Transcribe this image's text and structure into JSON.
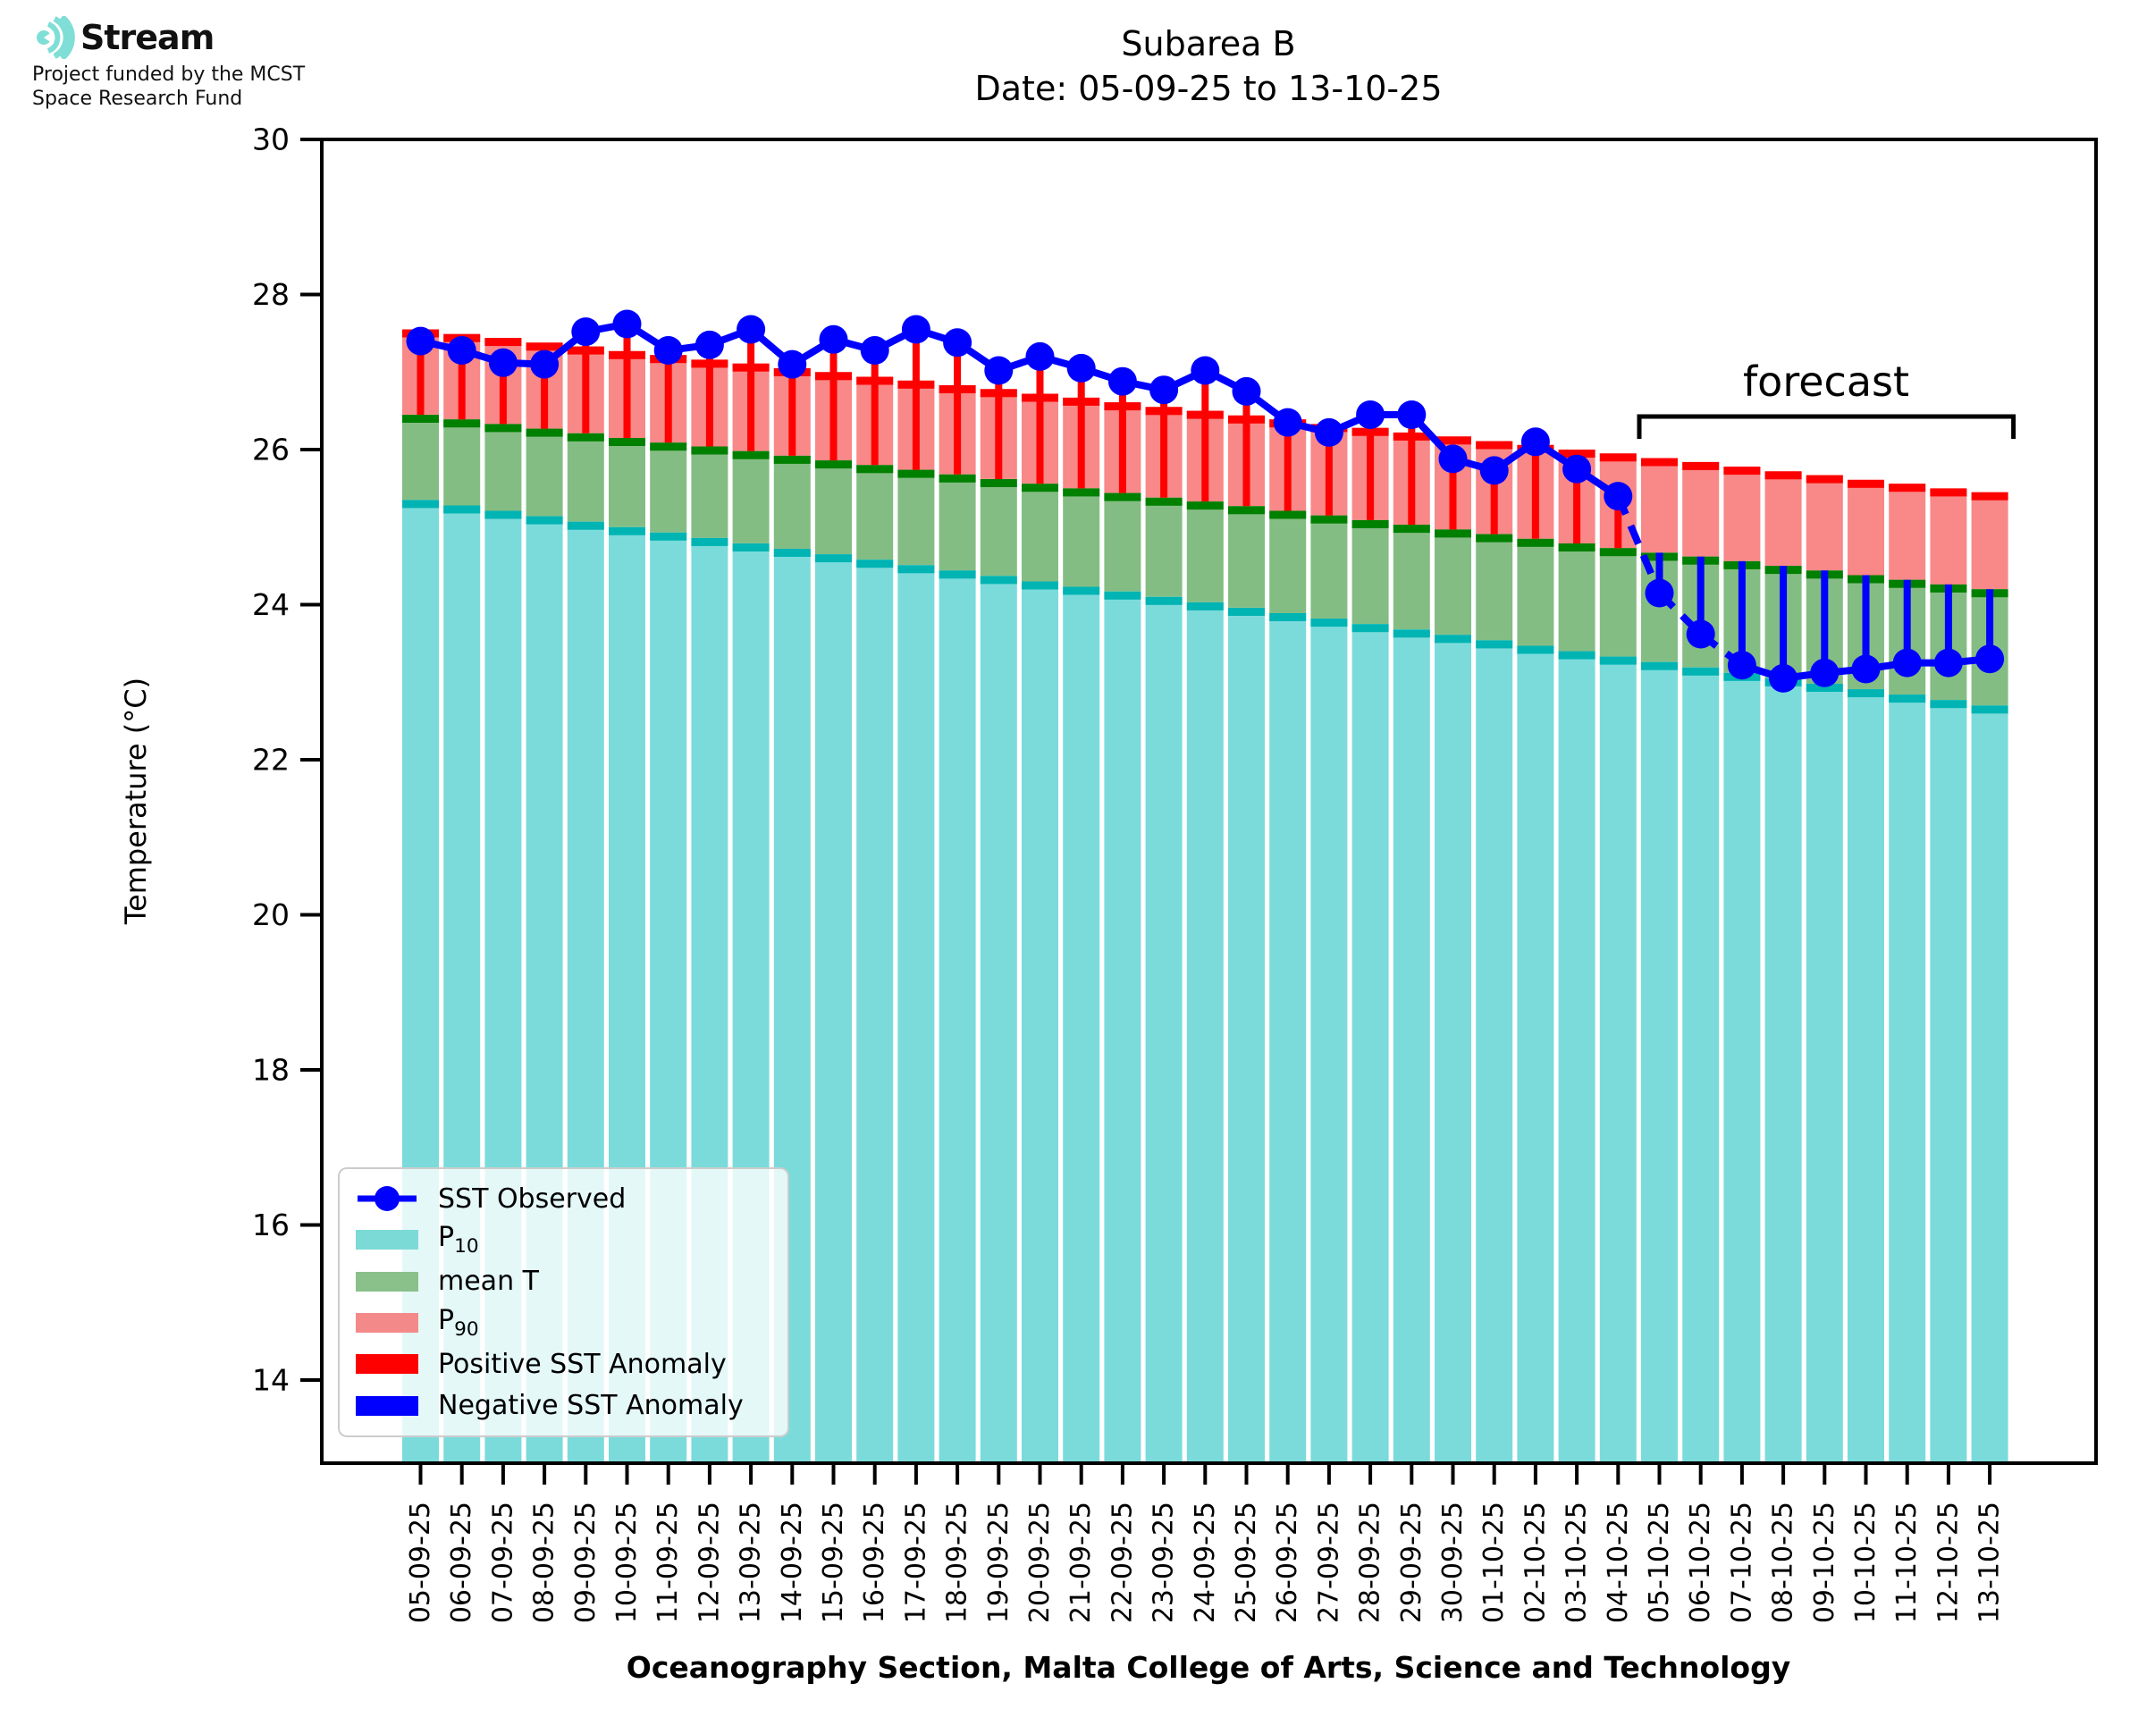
{
  "logo": {
    "brand": "Stream",
    "tagline_line1": "Project funded by the MCST",
    "tagline_line2": "Space Research Fund",
    "icon": "sound-wave-arcs-icon",
    "icon_color": "#7fded6"
  },
  "title": {
    "line1": "Subarea B",
    "line2": "Date: 05-09-25 to 13-10-25"
  },
  "chart_data": {
    "type": "bar",
    "title": "Subarea B",
    "subtitle": "Date: 05-09-25 to 13-10-25",
    "xlabel": "Oceanography Section, Malta College of Arts, Science and Technology",
    "ylabel": "Temperature (°C)",
    "ylim": [
      12.9,
      30
    ],
    "yticks": [
      30,
      28,
      26,
      24,
      22,
      20,
      18,
      16,
      14
    ],
    "grid": false,
    "legend_position": "lower left",
    "annotation": {
      "label": "forecast",
      "span_dates": [
        "05-10-25",
        "13-10-25"
      ]
    },
    "forecast_start_index": 30,
    "dashed_segments": [
      29,
      30,
      31
    ],
    "categories": [
      "05-09-25",
      "06-09-25",
      "07-09-25",
      "08-09-25",
      "09-09-25",
      "10-09-25",
      "11-09-25",
      "12-09-25",
      "13-09-25",
      "14-09-25",
      "15-09-25",
      "16-09-25",
      "17-09-25",
      "18-09-25",
      "19-09-25",
      "20-09-25",
      "21-09-25",
      "22-09-25",
      "23-09-25",
      "24-09-25",
      "25-09-25",
      "26-09-25",
      "27-09-25",
      "28-09-25",
      "29-09-25",
      "30-09-25",
      "01-10-25",
      "02-10-25",
      "03-10-25",
      "04-10-25",
      "05-10-25",
      "06-10-25",
      "07-10-25",
      "08-10-25",
      "09-10-25",
      "10-10-25",
      "11-10-25",
      "12-10-25",
      "13-10-25"
    ],
    "series": [
      {
        "name": "SST Observed",
        "type": "line",
        "color": "#0000ff",
        "values": [
          27.4,
          27.28,
          27.12,
          27.1,
          27.52,
          27.62,
          27.28,
          27.35,
          27.55,
          27.1,
          27.42,
          27.28,
          27.55,
          27.38,
          27.02,
          27.2,
          27.05,
          26.88,
          26.77,
          27.02,
          26.75,
          26.35,
          26.22,
          26.45,
          26.45,
          25.88,
          25.73,
          26.1,
          25.75,
          25.4,
          24.15,
          23.62,
          23.22,
          23.05,
          23.12,
          23.17,
          23.25,
          23.25,
          23.3
        ]
      },
      {
        "name": "P10",
        "type": "bar",
        "color": "#7bdbdb",
        "cap_color": "#00b4b4",
        "values": [
          25.35,
          25.28,
          25.21,
          25.14,
          25.07,
          25.0,
          24.93,
          24.86,
          24.79,
          24.72,
          24.65,
          24.58,
          24.51,
          24.44,
          24.37,
          24.3,
          24.23,
          24.17,
          24.1,
          24.03,
          23.96,
          23.89,
          23.82,
          23.75,
          23.68,
          23.61,
          23.54,
          23.47,
          23.4,
          23.33,
          23.26,
          23.19,
          23.12,
          23.05,
          22.98,
          22.91,
          22.84,
          22.77,
          22.7
        ]
      },
      {
        "name": "mean T",
        "type": "bar",
        "color": "#84bd84",
        "cap_color": "#008000",
        "values": [
          26.45,
          26.39,
          26.33,
          26.27,
          26.21,
          26.15,
          26.09,
          26.04,
          25.98,
          25.92,
          25.86,
          25.8,
          25.74,
          25.68,
          25.62,
          25.56,
          25.5,
          25.44,
          25.38,
          25.33,
          25.27,
          25.21,
          25.15,
          25.09,
          25.03,
          24.97,
          24.91,
          24.85,
          24.79,
          24.73,
          24.67,
          24.62,
          24.56,
          24.5,
          24.44,
          24.38,
          24.32,
          24.26,
          24.2
        ]
      },
      {
        "name": "P90",
        "type": "bar",
        "color": "#f98888",
        "cap_color": "#ff0000",
        "values": [
          27.55,
          27.49,
          27.44,
          27.38,
          27.33,
          27.27,
          27.22,
          27.16,
          27.11,
          27.05,
          27.0,
          26.94,
          26.89,
          26.83,
          26.78,
          26.72,
          26.67,
          26.61,
          26.55,
          26.5,
          26.44,
          26.39,
          26.33,
          26.28,
          26.22,
          26.17,
          26.11,
          26.06,
          26.0,
          25.95,
          25.89,
          25.84,
          25.78,
          25.72,
          25.67,
          25.61,
          25.56,
          25.5,
          25.45
        ]
      },
      {
        "name": "Positive SST Anomaly",
        "type": "stem",
        "color": "#ff0000",
        "description": "red stem from mean T up to observed SST where observed > mean"
      },
      {
        "name": "Negative SST Anomaly",
        "type": "stem",
        "color": "#0000ff",
        "description": "blue stem from mean T down to observed SST where observed < mean"
      }
    ]
  },
  "legend": {
    "items": [
      {
        "label_main": "SST Observed",
        "label_sub": "",
        "swatch": "line-marker",
        "color": "#0000ff"
      },
      {
        "label_main": "P",
        "label_sub": "10",
        "swatch": "rect",
        "color": "#7cdad6"
      },
      {
        "label_main": "mean T",
        "label_sub": "",
        "swatch": "rect",
        "color": "#8ac08a"
      },
      {
        "label_main": "P",
        "label_sub": "90",
        "swatch": "rect",
        "color": "#f48989"
      },
      {
        "label_main": "Positive SST Anomaly",
        "label_sub": "",
        "swatch": "rect",
        "color": "#ff0000"
      },
      {
        "label_main": "Negative SST Anomaly",
        "label_sub": "",
        "swatch": "rect",
        "color": "#0000ff"
      }
    ]
  }
}
